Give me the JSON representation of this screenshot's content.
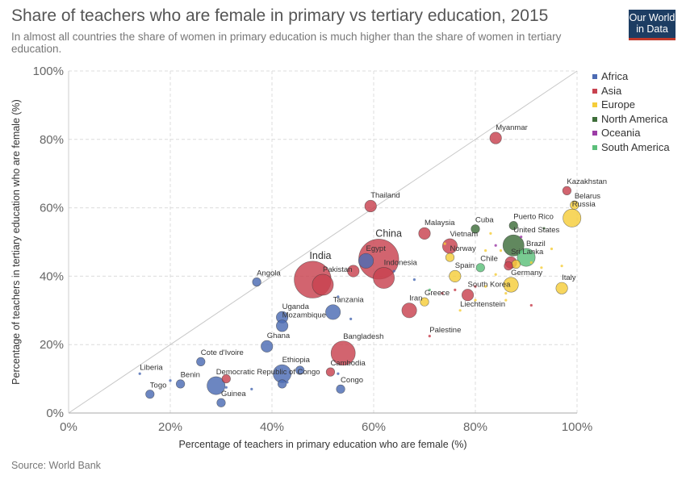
{
  "page": {
    "title": "Share of teachers who are female in primary vs tertiary education, 2015",
    "subtitle": "In almost all countries the share of women in primary education is much higher than the share of women in tertiary education.",
    "logo_line1": "Our World",
    "logo_line2": "in Data",
    "source": "Source: World Bank"
  },
  "colors": {
    "Africa": "#4c6bb3",
    "Asia": "#c8424f",
    "Europe": "#f5cd3a",
    "North America": "#3e6e3a",
    "Oceania": "#9c3ca6",
    "South America": "#5bbf7a",
    "grid": "#dcdcdc",
    "diagonal": "#c8c8c8"
  },
  "chart_data": {
    "type": "scatter",
    "title": "Share of teachers who are female in primary vs tertiary education, 2015",
    "xlabel": "Percentage of teachers in primary education who are female (%)",
    "ylabel": "Percentage of teachers in tertiary education who are female (%)",
    "xlim": [
      0,
      100
    ],
    "ylim": [
      0,
      100
    ],
    "x_ticks": [
      "0%",
      "20%",
      "40%",
      "60%",
      "80%",
      "100%"
    ],
    "y_ticks": [
      "0%",
      "20%",
      "40%",
      "60%",
      "80%",
      "100%"
    ],
    "grid": true,
    "legend_position": "right",
    "legend": [
      "Africa",
      "Asia",
      "Europe",
      "North America",
      "Oceania",
      "South America"
    ],
    "size_encoding": "population (relative)",
    "points": [
      {
        "x": 84,
        "y": 80.4,
        "region": "Asia",
        "label": "Myanmar",
        "size": 3
      },
      {
        "x": 59.4,
        "y": 60.5,
        "region": "Asia",
        "label": "Thailand",
        "size": 3
      },
      {
        "x": 98,
        "y": 65,
        "region": "Asia",
        "label": "Kazakhstan",
        "size": 2
      },
      {
        "x": 99.5,
        "y": 60.8,
        "region": "Europe",
        "label": "Belarus",
        "size": 2
      },
      {
        "x": 99,
        "y": 57,
        "region": "Europe",
        "label": "Russia",
        "size": 5
      },
      {
        "x": 75,
        "y": 48.8,
        "region": "Asia",
        "label": "Vietnam",
        "size": 4
      },
      {
        "x": 70,
        "y": 52.5,
        "region": "Asia",
        "label": "Malaysia",
        "size": 3
      },
      {
        "x": 80,
        "y": 53.8,
        "region": "North America",
        "label": "Cuba",
        "size": 2
      },
      {
        "x": 87.5,
        "y": 54.8,
        "region": "North America",
        "label": "Puerto Rico",
        "size": 2
      },
      {
        "x": 87.5,
        "y": 49,
        "region": "North America",
        "label": "United States",
        "size": 6
      },
      {
        "x": 90,
        "y": 45.5,
        "region": "South America",
        "label": "Brazil",
        "size": 5
      },
      {
        "x": 87,
        "y": 44,
        "region": "Asia",
        "label": "Sri Lanka",
        "size": 3
      },
      {
        "x": 61,
        "y": 45,
        "region": "Asia",
        "label": "China",
        "size": 12
      },
      {
        "x": 48,
        "y": 39,
        "region": "Asia",
        "label": "India",
        "size": 11
      },
      {
        "x": 58.5,
        "y": 44.5,
        "region": "Africa",
        "label": "Egypt",
        "size": 4
      },
      {
        "x": 62,
        "y": 39.5,
        "region": "Asia",
        "label": "Indonesia",
        "size": 6
      },
      {
        "x": 50,
        "y": 37.5,
        "region": "Asia",
        "label": "Pakistan",
        "size": 6
      },
      {
        "x": 75,
        "y": 45.5,
        "region": "Europe",
        "label": "Norway",
        "size": 2
      },
      {
        "x": 81,
        "y": 42.5,
        "region": "South America",
        "label": "Chile",
        "size": 2
      },
      {
        "x": 76,
        "y": 40,
        "region": "Europe",
        "label": "Spain",
        "size": 3
      },
      {
        "x": 87,
        "y": 37.5,
        "region": "Europe",
        "label": "Germany",
        "size": 4
      },
      {
        "x": 78.5,
        "y": 34.5,
        "region": "Asia",
        "label": "South Korea",
        "size": 3
      },
      {
        "x": 97,
        "y": 36.5,
        "region": "Europe",
        "label": "Italy",
        "size": 3
      },
      {
        "x": 70,
        "y": 32.5,
        "region": "Europe",
        "label": "Greece",
        "size": 2
      },
      {
        "x": 77,
        "y": 30,
        "region": "Europe",
        "label": "Liechtenstein",
        "size": 1
      },
      {
        "x": 67,
        "y": 30,
        "region": "Asia",
        "label": "Iran",
        "size": 4
      },
      {
        "x": 71,
        "y": 22.5,
        "region": "Asia",
        "label": "Palestine",
        "size": 1
      },
      {
        "x": 37,
        "y": 38.3,
        "region": "Africa",
        "label": "Angola",
        "size": 2
      },
      {
        "x": 52,
        "y": 29.5,
        "region": "Africa",
        "label": "Tanzania",
        "size": 4
      },
      {
        "x": 42,
        "y": 28,
        "region": "Africa",
        "label": "Uganda",
        "size": 3
      },
      {
        "x": 42,
        "y": 25.5,
        "region": "Africa",
        "label": "Mozambique",
        "size": 3
      },
      {
        "x": 39,
        "y": 19.5,
        "region": "Africa",
        "label": "Ghana",
        "size": 3
      },
      {
        "x": 54,
        "y": 17.5,
        "region": "Asia",
        "label": "Bangladesh",
        "size": 7
      },
      {
        "x": 26,
        "y": 15,
        "region": "Africa",
        "label": "Cote d'Ivoire",
        "size": 2
      },
      {
        "x": 42,
        "y": 11.5,
        "region": "Africa",
        "label": "Ethiopia",
        "size": 5
      },
      {
        "x": 51.5,
        "y": 12,
        "region": "Asia",
        "label": "Cambodia",
        "size": 2
      },
      {
        "x": 14,
        "y": 11.5,
        "region": "Africa",
        "label": "Liberia",
        "size": 1
      },
      {
        "x": 29,
        "y": 8,
        "region": "Africa",
        "label": "Democratic Republic of Congo",
        "size": 5
      },
      {
        "x": 22,
        "y": 8.5,
        "region": "Africa",
        "label": "Benin",
        "size": 2
      },
      {
        "x": 16,
        "y": 5.5,
        "region": "Africa",
        "label": "Togo",
        "size": 2
      },
      {
        "x": 30,
        "y": 3,
        "region": "Africa",
        "label": "Guinea",
        "size": 2
      },
      {
        "x": 53.5,
        "y": 7,
        "region": "Africa",
        "label": "Congo",
        "size": 2
      },
      {
        "x": 91,
        "y": 31.5,
        "region": "Asia",
        "size": 1
      },
      {
        "x": 86,
        "y": 33,
        "region": "Europe",
        "size": 1
      },
      {
        "x": 88,
        "y": 43.5,
        "region": "Europe",
        "size": 2
      },
      {
        "x": 91,
        "y": 44,
        "region": "Europe",
        "size": 1
      },
      {
        "x": 93,
        "y": 42.5,
        "region": "Europe",
        "size": 1
      },
      {
        "x": 95,
        "y": 48,
        "region": "Europe",
        "size": 1
      },
      {
        "x": 97,
        "y": 43,
        "region": "Europe",
        "size": 1
      },
      {
        "x": 83,
        "y": 52.5,
        "region": "Europe",
        "size": 1
      },
      {
        "x": 85,
        "y": 47.5,
        "region": "Europe",
        "size": 1
      },
      {
        "x": 82,
        "y": 47.5,
        "region": "Europe",
        "size": 1
      },
      {
        "x": 84,
        "y": 40.5,
        "region": "Europe",
        "size": 1
      },
      {
        "x": 82,
        "y": 37,
        "region": "Europe",
        "size": 1
      },
      {
        "x": 86,
        "y": 35,
        "region": "Europe",
        "size": 1
      },
      {
        "x": 80,
        "y": 33,
        "region": "Europe",
        "size": 1
      },
      {
        "x": 84,
        "y": 49,
        "region": "Oceania",
        "size": 1
      },
      {
        "x": 89,
        "y": 51.5,
        "region": "Oceania",
        "size": 1
      },
      {
        "x": 93.5,
        "y": 54,
        "region": "North America",
        "size": 1
      },
      {
        "x": 80,
        "y": 37,
        "region": "Asia",
        "size": 1
      },
      {
        "x": 76,
        "y": 36,
        "region": "Asia",
        "size": 1
      },
      {
        "x": 73.5,
        "y": 35,
        "region": "Asia",
        "size": 1
      },
      {
        "x": 71,
        "y": 36,
        "region": "South America",
        "size": 1
      },
      {
        "x": 74,
        "y": 49.5,
        "region": "Europe",
        "size": 1
      },
      {
        "x": 86.5,
        "y": 43,
        "region": "Asia",
        "size": 2
      },
      {
        "x": 89,
        "y": 47,
        "region": "South America",
        "size": 1
      },
      {
        "x": 68,
        "y": 39,
        "region": "Africa",
        "size": 1
      },
      {
        "x": 64,
        "y": 41.5,
        "region": "Africa",
        "size": 1
      },
      {
        "x": 56,
        "y": 41.5,
        "region": "Asia",
        "size": 3
      },
      {
        "x": 53,
        "y": 34,
        "region": "Africa",
        "size": 1
      },
      {
        "x": 55.5,
        "y": 27.5,
        "region": "Africa",
        "size": 1
      },
      {
        "x": 42,
        "y": 8.5,
        "region": "Africa",
        "size": 2
      },
      {
        "x": 36,
        "y": 7,
        "region": "Africa",
        "size": 1
      },
      {
        "x": 31,
        "y": 7.5,
        "region": "Africa",
        "size": 1
      },
      {
        "x": 20,
        "y": 9.5,
        "region": "Africa",
        "size": 1
      },
      {
        "x": 53,
        "y": 11.5,
        "region": "Africa",
        "size": 1
      },
      {
        "x": 45.5,
        "y": 12.5,
        "region": "Africa",
        "size": 2
      },
      {
        "x": 31,
        "y": 10,
        "region": "Asia",
        "size": 2
      },
      {
        "x": 43,
        "y": 9,
        "region": "Africa",
        "size": 1
      }
    ]
  }
}
